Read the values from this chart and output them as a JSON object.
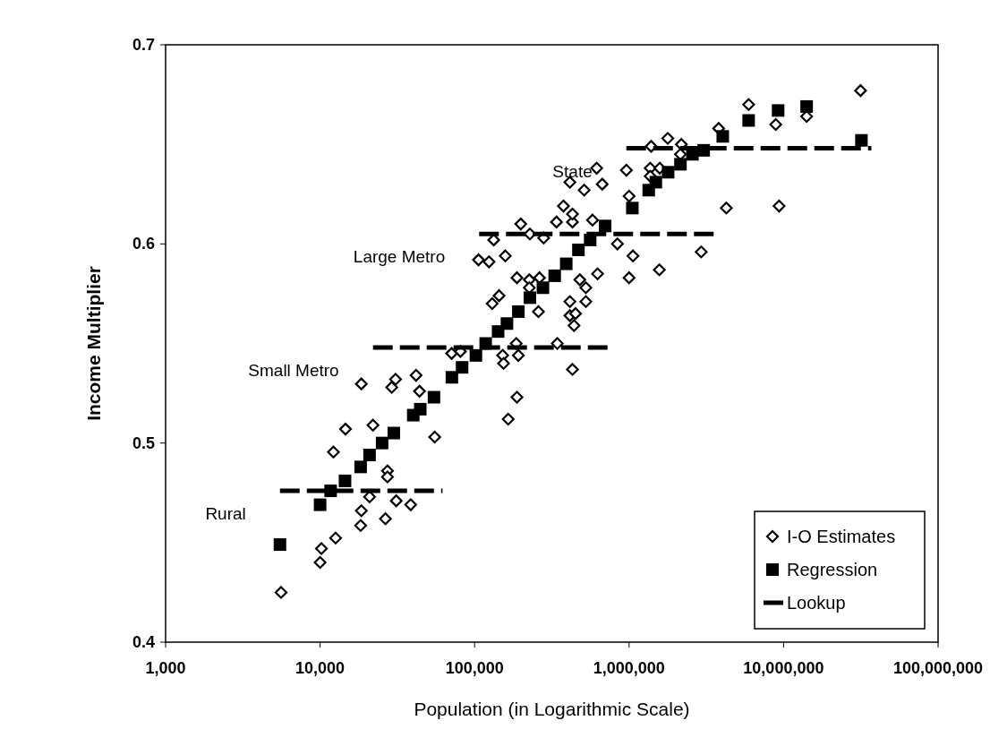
{
  "chart_data": {
    "type": "scatter",
    "xlabel": "Population (in Logarithmic Scale)",
    "ylabel": "Income Multiplier",
    "log": "x",
    "xlim": [
      1000,
      100000000
    ],
    "ylim": [
      0.4,
      0.7
    ],
    "xticks": [
      {
        "value": 1000,
        "label": "1,000"
      },
      {
        "value": 10000,
        "label": "10,000"
      },
      {
        "value": 100000,
        "label": "100,000"
      },
      {
        "value": 1000000,
        "label": "1,000,000"
      },
      {
        "value": 10000000,
        "label": "10,000,000"
      },
      {
        "value": 100000000,
        "label": "100,000,000"
      }
    ],
    "yticks": [
      0.4,
      0.5,
      0.6,
      0.7
    ],
    "grid": false,
    "legend": "bottom right",
    "annotations": [
      {
        "text": "Rural",
        "x": 5500,
        "y": 0.476
      },
      {
        "text": "Small Metro",
        "x": 22000,
        "y": 0.548
      },
      {
        "text": "Large Metro",
        "x": 107000,
        "y": 0.605
      },
      {
        "text": "State",
        "x": 960000,
        "y": 0.648
      }
    ],
    "series": [
      {
        "name": "I-O Estimates",
        "marker": "diamond",
        "color": "#000000",
        "x": [
          5590,
          10000,
          10200,
          12600,
          12200,
          14600,
          22000,
          18500,
          30800,
          29100,
          41800,
          44000,
          55200,
          27300,
          27300,
          20900,
          31100,
          38600,
          18500,
          18300,
          26500,
          199000,
          133000,
          228000,
          280000,
          339000,
          430000,
          580000,
          840000,
          106000,
          124000,
          158000,
          188000,
          226000,
          263000,
          226000,
          480000,
          625000,
          525000,
          130000,
          144000,
          259000,
          414000,
          414000,
          525000,
          440000,
          450000,
          71000,
          81000,
          152000,
          192000,
          154000,
          186000,
          343000,
          430000,
          188000,
          165000,
          617000,
          414000,
          512000,
          670000,
          960000,
          1000000,
          1370000,
          1580000,
          1370000,
          1390000,
          1780000,
          2180000,
          376000,
          430000,
          1060000,
          1570000,
          1000000,
          2930000,
          4260000,
          2150000,
          5940000,
          8900000,
          14100000,
          31500000,
          9350000,
          3800000
        ],
        "values": [
          0.425,
          0.44,
          0.447,
          0.4523,
          0.4955,
          0.507,
          0.509,
          0.5297,
          0.532,
          0.528,
          0.534,
          0.526,
          0.503,
          0.486,
          0.483,
          0.473,
          0.471,
          0.469,
          0.466,
          0.4586,
          0.462,
          0.61,
          0.602,
          0.605,
          0.603,
          0.611,
          0.611,
          0.612,
          0.6,
          0.592,
          0.591,
          0.594,
          0.583,
          0.582,
          0.583,
          0.578,
          0.582,
          0.585,
          0.578,
          0.57,
          0.574,
          0.566,
          0.571,
          0.564,
          0.571,
          0.559,
          0.565,
          0.545,
          0.546,
          0.544,
          0.544,
          0.54,
          0.55,
          0.55,
          0.537,
          0.523,
          0.512,
          0.638,
          0.631,
          0.627,
          0.63,
          0.637,
          0.624,
          0.638,
          0.638,
          0.634,
          0.649,
          0.653,
          0.65,
          0.619,
          0.615,
          0.594,
          0.587,
          0.583,
          0.596,
          0.618,
          0.645,
          0.67,
          0.66,
          0.664,
          0.677,
          0.619,
          0.658
        ]
      },
      {
        "name": "Regression",
        "marker": "square",
        "color": "#000000",
        "x": [
          5500,
          10000,
          11700,
          14500,
          18300,
          20900,
          25200,
          30000,
          40100,
          44500,
          54600,
          71300,
          83000,
          102000,
          118000,
          142000,
          162000,
          192000,
          228000,
          277000,
          330000,
          392000,
          470000,
          560000,
          700000,
          1050000,
          1340000,
          1490000,
          1790000,
          2150000,
          2570000,
          3040000,
          4040000,
          5940000,
          9220000,
          14100000,
          31900000
        ],
        "values": [
          0.449,
          0.469,
          0.476,
          0.481,
          0.488,
          0.494,
          0.5,
          0.505,
          0.514,
          0.517,
          0.523,
          0.533,
          0.538,
          0.544,
          0.55,
          0.556,
          0.56,
          0.566,
          0.573,
          0.578,
          0.584,
          0.59,
          0.597,
          0.602,
          0.609,
          0.618,
          0.627,
          0.631,
          0.636,
          0.64,
          0.645,
          0.647,
          0.654,
          0.662,
          0.667,
          0.669,
          0.652
        ]
      },
      {
        "name": "Lookup",
        "type": "line",
        "marker": "none",
        "line_style": "dashed",
        "color": "#000000",
        "x": [
          5500,
          62000,
          null,
          22000,
          770000,
          null,
          107000,
          3550000,
          null,
          960000,
          37000000
        ],
        "values": [
          0.476,
          0.476,
          null,
          0.548,
          0.548,
          null,
          0.605,
          0.605,
          null,
          0.648,
          0.648
        ]
      }
    ]
  }
}
